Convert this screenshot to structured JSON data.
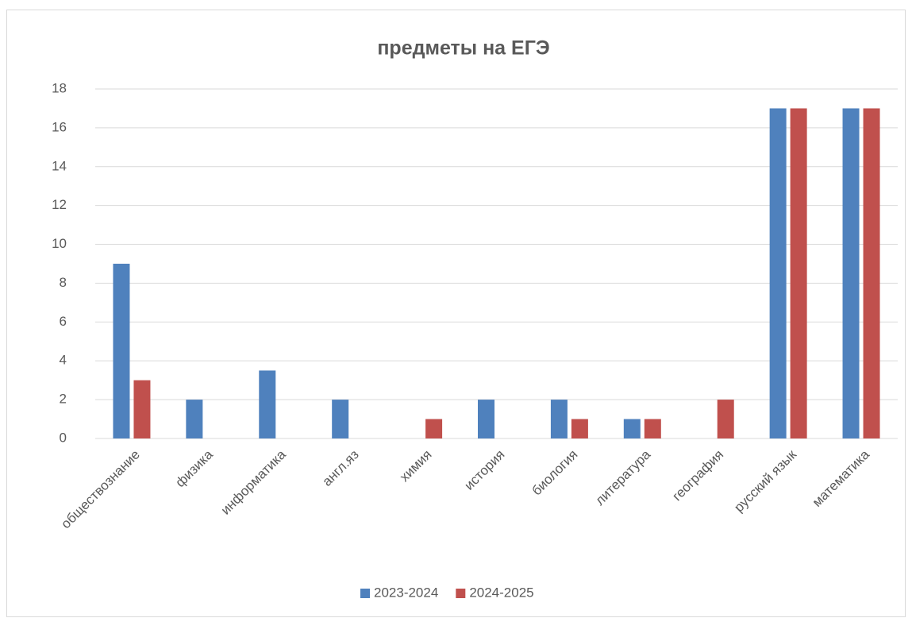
{
  "chart_data": {
    "type": "bar",
    "title": "предметы на ЕГЭ",
    "categories": [
      "обществознание",
      "физика",
      "информатика",
      "англ.яз",
      "химия",
      "история",
      "биология",
      "литература",
      "география",
      "русский язык",
      "математика"
    ],
    "series": [
      {
        "name": "2023-2024",
        "color": "#4f81bd",
        "values": [
          9,
          2,
          3.5,
          2,
          0,
          2,
          2,
          1,
          0,
          17,
          17
        ]
      },
      {
        "name": "2024-2025",
        "color": "#c0504d",
        "values": [
          3,
          0,
          0,
          0,
          1,
          0,
          1,
          1,
          2,
          17,
          17
        ]
      }
    ],
    "ylim": [
      0,
      18
    ],
    "yticks": [
      0,
      2,
      4,
      6,
      8,
      10,
      12,
      14,
      16,
      18
    ],
    "grid": true,
    "legend": "bottom"
  }
}
